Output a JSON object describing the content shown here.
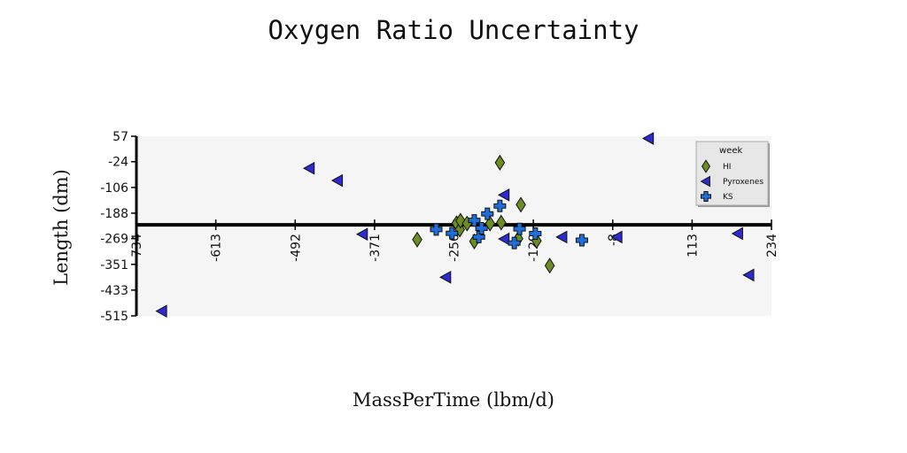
{
  "chart_data": {
    "type": "scatter",
    "title": "Oxygen Ratio Uncertainty",
    "xlabel": "MassPerTime (lbm/d)",
    "ylabel": "Length (dm)",
    "xlim": [
      -734,
      234
    ],
    "ylim": [
      -515,
      57
    ],
    "x_ticks": [
      "-734",
      "-613",
      "-492",
      "-371",
      "-250",
      "-129",
      "-8",
      "113",
      "234"
    ],
    "y_ticks": [
      "57",
      "-24",
      "-106",
      "-188",
      "-269",
      "-351",
      "-433",
      "-515"
    ],
    "reference_line_y": -225,
    "grid": false,
    "legend": {
      "title": "week",
      "position": "top-right"
    },
    "series": [
      {
        "name": "HI",
        "marker": "diamond",
        "color": "#6b8e23",
        "points": [
          [
            -180,
            -27
          ],
          [
            -178,
            -218
          ],
          [
            -148,
            -161
          ],
          [
            -152,
            -269
          ],
          [
            -124,
            -276
          ],
          [
            -104,
            -355
          ],
          [
            -306,
            -272
          ],
          [
            -246,
            -220
          ],
          [
            -241,
            -240
          ],
          [
            -240,
            -212
          ],
          [
            -230,
            -221
          ],
          [
            -219,
            -278
          ],
          [
            -195,
            -221
          ]
        ]
      },
      {
        "name": "Pyroxenes",
        "marker": "triangle-left",
        "color": "#2b2bd0",
        "points": [
          [
            -695,
            -500
          ],
          [
            -470,
            -45
          ],
          [
            -427,
            -84
          ],
          [
            -389,
            -255
          ],
          [
            -262,
            -392
          ],
          [
            -173,
            -130
          ],
          [
            -173,
            -270
          ],
          [
            -85,
            -264
          ],
          [
            -1,
            -264
          ],
          [
            47,
            50
          ],
          [
            183,
            -253
          ],
          [
            200,
            -385
          ]
        ]
      },
      {
        "name": "KS",
        "marker": "plus",
        "color": "#1e6fd9",
        "points": [
          [
            -277,
            -240
          ],
          [
            -253,
            -252
          ],
          [
            -219,
            -211
          ],
          [
            -212,
            -264
          ],
          [
            -208,
            -236
          ],
          [
            -199,
            -190
          ],
          [
            -180,
            -165
          ],
          [
            -158,
            -283
          ],
          [
            -150,
            -238
          ],
          [
            -126,
            -253
          ],
          [
            -55,
            -274
          ]
        ]
      }
    ]
  }
}
